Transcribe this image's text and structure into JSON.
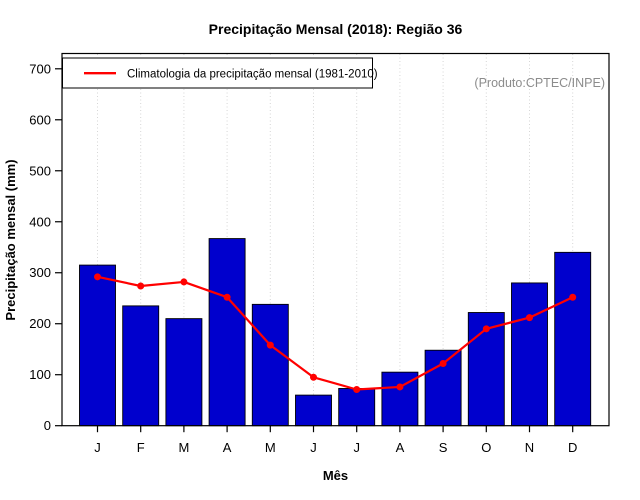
{
  "chart_data": {
    "type": "bar",
    "title": "Precipitação Mensal (2018): Região 36",
    "xlabel": "Mês",
    "ylabel": "Precipitação mensal (mm)",
    "source_note": "(Produto:CPTEC/INPE)",
    "legend_label": "Climatologia da precipitação mensal (1981-2010)",
    "legend_position": "top-left",
    "grid": "vertical-dotted",
    "categories": [
      "J",
      "F",
      "M",
      "A",
      "M",
      "J",
      "J",
      "A",
      "S",
      "O",
      "N",
      "D"
    ],
    "series": [
      {
        "name": "Precipitação mensal (2018)",
        "type": "bar",
        "color": "#0000CD",
        "values": [
          315,
          235,
          210,
          367,
          238,
          60,
          73,
          105,
          148,
          222,
          280,
          340
        ]
      },
      {
        "name": "Climatologia da precipitação mensal (1981-2010)",
        "type": "line",
        "color": "#FF0000",
        "values": [
          292,
          274,
          282,
          252,
          158,
          95,
          71,
          76,
          122,
          190,
          212,
          252
        ]
      }
    ],
    "ylim": [
      0,
      730
    ],
    "yticks": [
      0,
      100,
      200,
      300,
      400,
      500,
      600,
      700
    ],
    "colors": {
      "bar": "#0000CD",
      "bar_border": "#000000",
      "line": "#FF0000",
      "grid": "#D6D6D6",
      "axis": "#000000",
      "annotation": "#8C8C8C"
    }
  }
}
